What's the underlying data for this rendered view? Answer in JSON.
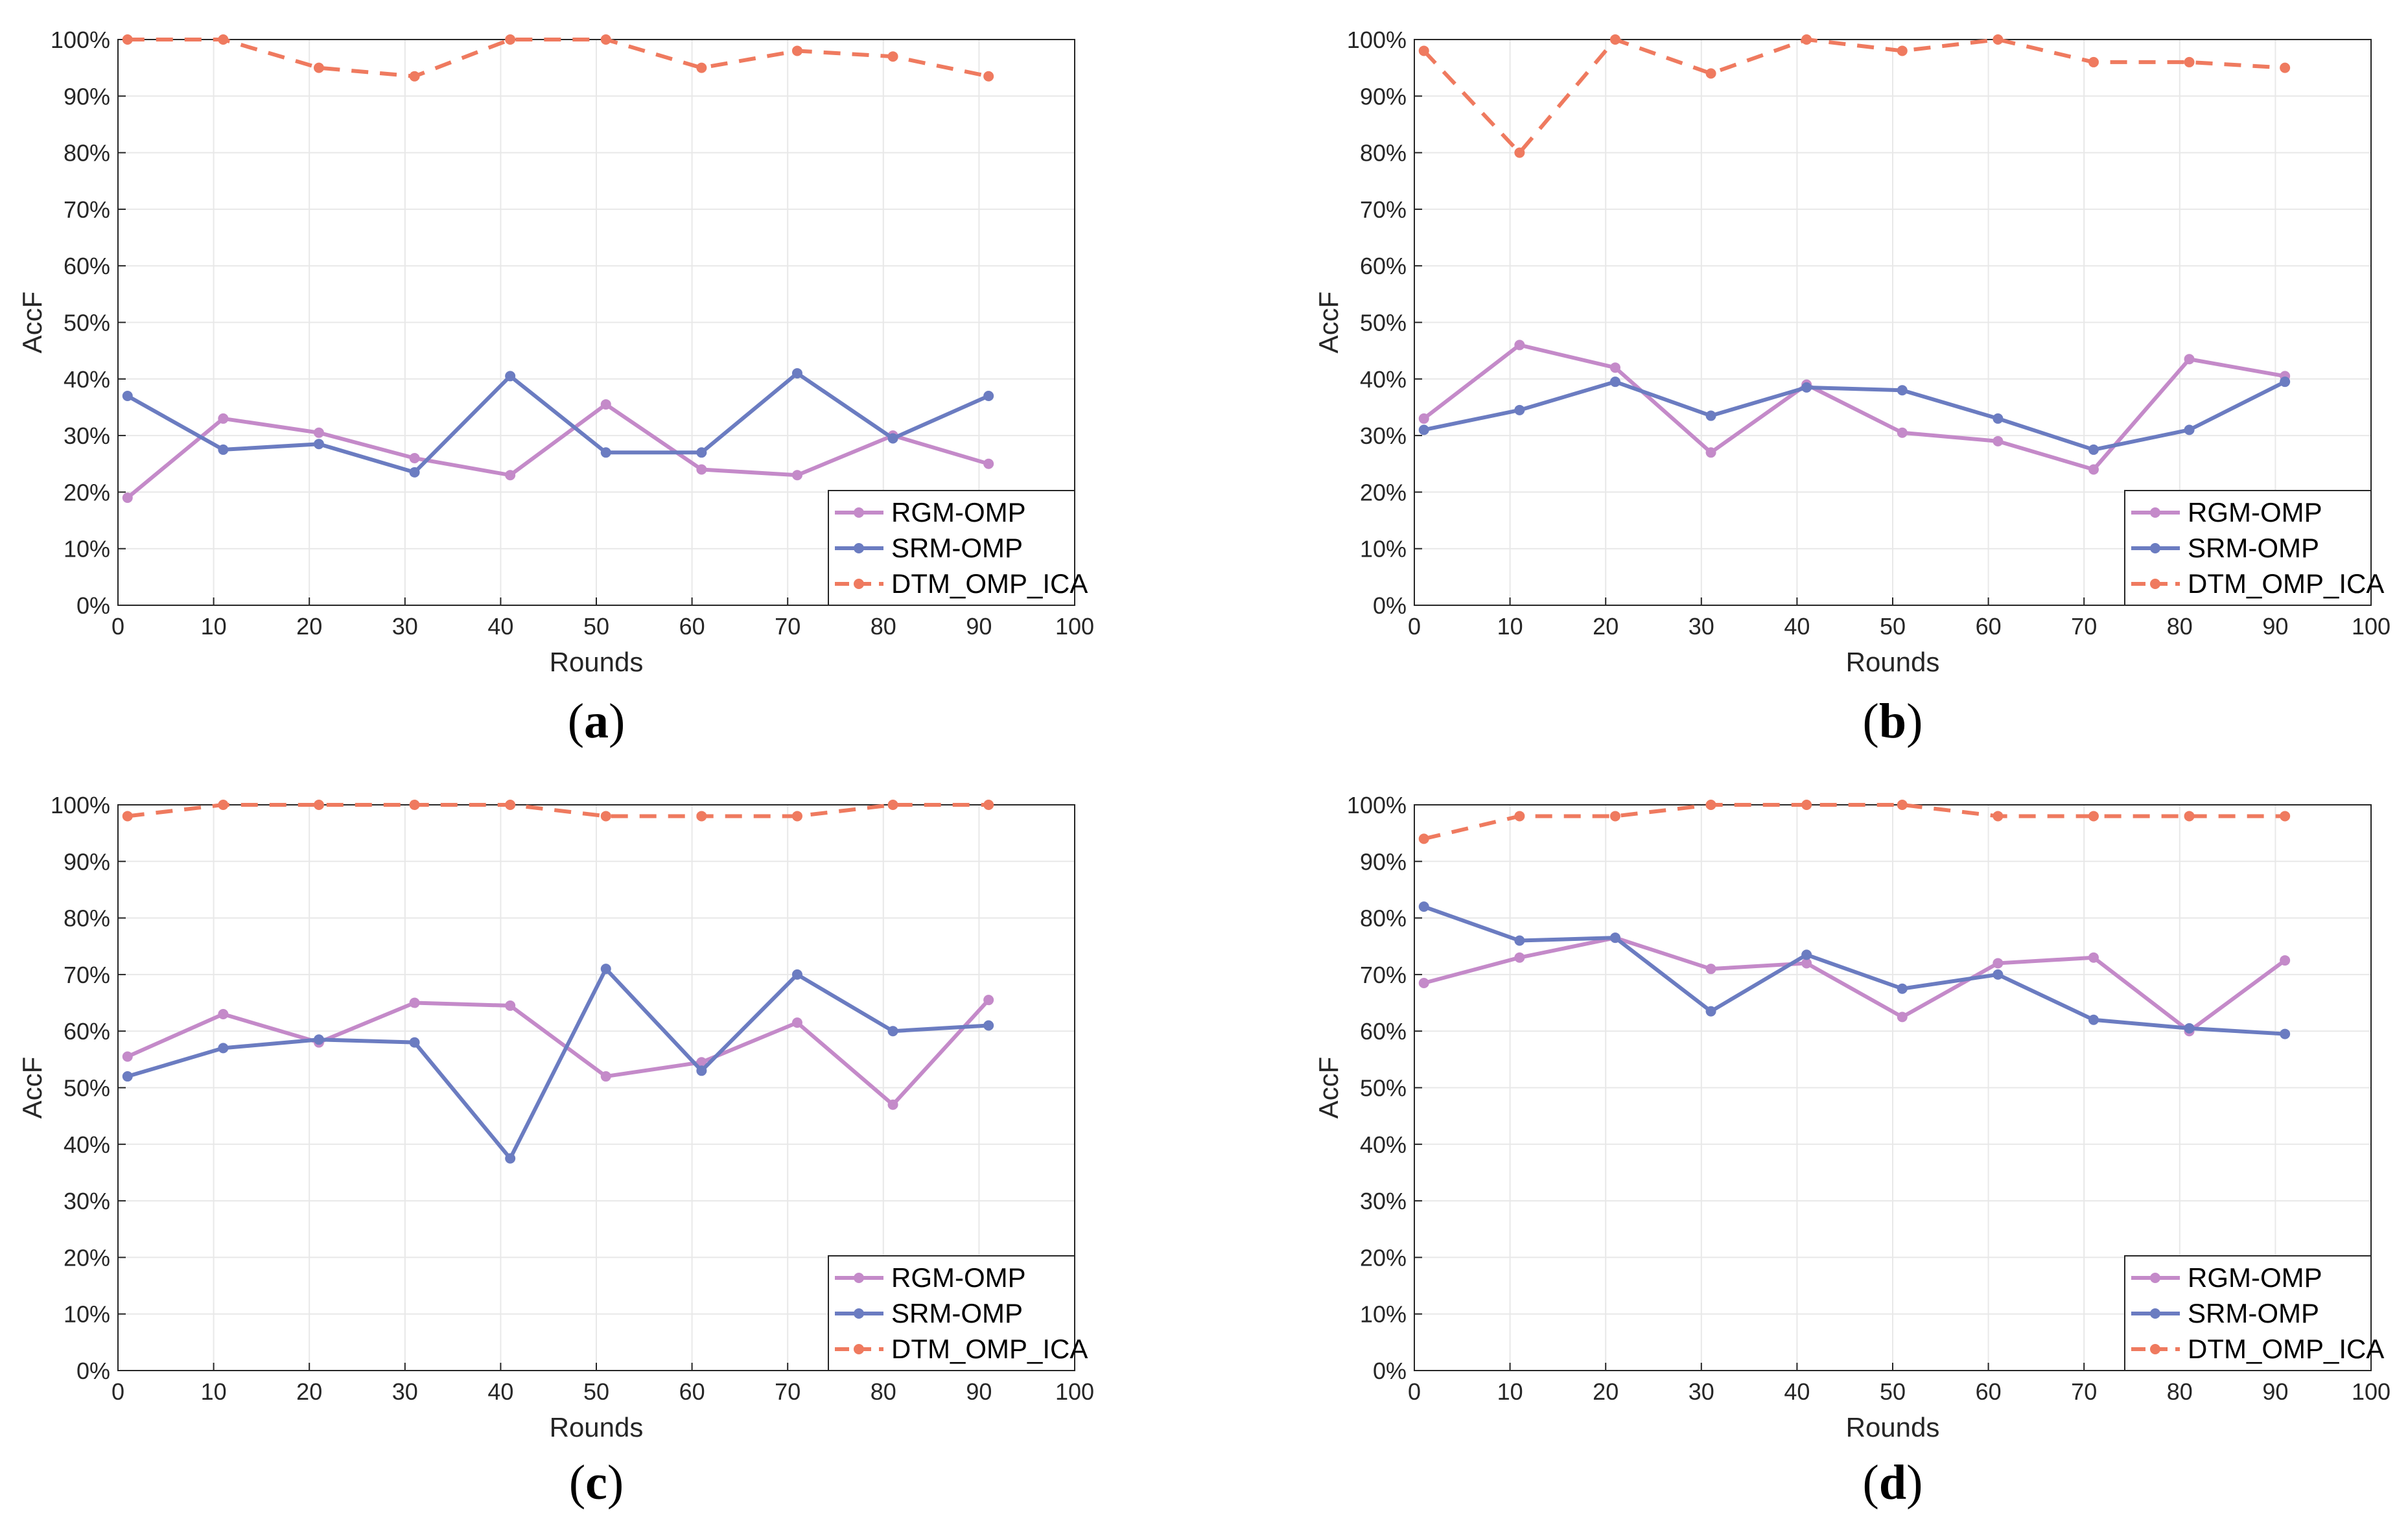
{
  "colors": {
    "RGM-OMP": "#c48ac9",
    "SRM-OMP": "#6b7cc1",
    "DTM_OMP_ICA": "#ef7a5f"
  },
  "chart_data": [
    {
      "type": "line",
      "caption_letter": "a",
      "xlabel": "Rounds",
      "ylabel": "AccF",
      "xlim": [
        0,
        100
      ],
      "ylim": [
        0,
        100
      ],
      "xticks": [
        "0",
        "10",
        "20",
        "30",
        "40",
        "50",
        "60",
        "70",
        "80",
        "90",
        "100"
      ],
      "yticks": [
        "0%",
        "10%",
        "20%",
        "30%",
        "40%",
        "50%",
        "60%",
        "70%",
        "80%",
        "90%",
        "100%"
      ],
      "grid": true,
      "legend": "bottom-right",
      "x": [
        1,
        11,
        21,
        31,
        41,
        51,
        61,
        71,
        81,
        91
      ],
      "series": [
        {
          "name": "RGM-OMP",
          "values": [
            19,
            33,
            30.5,
            26,
            23,
            35.5,
            24,
            23,
            30,
            25
          ]
        },
        {
          "name": "SRM-OMP",
          "values": [
            37,
            27.5,
            28.5,
            23.5,
            40.5,
            27,
            27,
            41,
            29.5,
            37
          ]
        },
        {
          "name": "DTM_OMP_ICA",
          "values": [
            100,
            100,
            95,
            93.5,
            100,
            100,
            95,
            98,
            97,
            93.5
          ]
        }
      ]
    },
    {
      "type": "line",
      "caption_letter": "b",
      "xlabel": "Rounds",
      "ylabel": "AccF",
      "xlim": [
        0,
        100
      ],
      "ylim": [
        0,
        100
      ],
      "xticks": [
        "0",
        "10",
        "20",
        "30",
        "40",
        "50",
        "60",
        "70",
        "80",
        "90",
        "100"
      ],
      "yticks": [
        "0%",
        "10%",
        "20%",
        "30%",
        "40%",
        "50%",
        "60%",
        "70%",
        "80%",
        "90%",
        "100%"
      ],
      "grid": true,
      "legend": "bottom-right",
      "x": [
        1,
        11,
        21,
        31,
        41,
        51,
        61,
        71,
        81,
        91
      ],
      "series": [
        {
          "name": "RGM-OMP",
          "values": [
            33,
            46,
            42,
            27,
            39,
            30.5,
            29,
            24,
            43.5,
            40.5
          ]
        },
        {
          "name": "SRM-OMP",
          "values": [
            31,
            34.5,
            39.5,
            33.5,
            38.5,
            38,
            33,
            27.5,
            31,
            39.5
          ]
        },
        {
          "name": "DTM_OMP_ICA",
          "values": [
            98,
            80,
            100,
            94,
            100,
            98,
            100,
            96,
            96,
            95
          ]
        }
      ]
    },
    {
      "type": "line",
      "caption_letter": "c",
      "xlabel": "Rounds",
      "ylabel": "AccF",
      "xlim": [
        0,
        100
      ],
      "ylim": [
        0,
        100
      ],
      "xticks": [
        "0",
        "10",
        "20",
        "30",
        "40",
        "50",
        "60",
        "70",
        "80",
        "90",
        "100"
      ],
      "yticks": [
        "0%",
        "10%",
        "20%",
        "30%",
        "40%",
        "50%",
        "60%",
        "70%",
        "80%",
        "90%",
        "100%"
      ],
      "grid": true,
      "legend": "bottom-right",
      "x": [
        1,
        11,
        21,
        31,
        41,
        51,
        61,
        71,
        81,
        91
      ],
      "series": [
        {
          "name": "RGM-OMP",
          "values": [
            55.5,
            63,
            58,
            65,
            64.5,
            52,
            54.5,
            61.5,
            47,
            65.5
          ]
        },
        {
          "name": "SRM-OMP",
          "values": [
            52,
            57,
            58.5,
            58,
            37.5,
            71,
            53,
            70,
            60,
            61
          ]
        },
        {
          "name": "DTM_OMP_ICA",
          "values": [
            98,
            100,
            100,
            100,
            100,
            98,
            98,
            98,
            100,
            100
          ]
        }
      ]
    },
    {
      "type": "line",
      "caption_letter": "d",
      "xlabel": "Rounds",
      "ylabel": "AccF",
      "xlim": [
        0,
        100
      ],
      "ylim": [
        0,
        100
      ],
      "xticks": [
        "0",
        "10",
        "20",
        "30",
        "40",
        "50",
        "60",
        "70",
        "80",
        "90",
        "100"
      ],
      "yticks": [
        "0%",
        "10%",
        "20%",
        "30%",
        "40%",
        "50%",
        "60%",
        "70%",
        "80%",
        "90%",
        "100%"
      ],
      "grid": true,
      "legend": "bottom-right",
      "x": [
        1,
        11,
        21,
        31,
        41,
        51,
        61,
        71,
        81,
        91
      ],
      "series": [
        {
          "name": "RGM-OMP",
          "values": [
            68.5,
            73,
            76.5,
            71,
            72,
            62.5,
            72,
            73,
            60,
            72.5
          ]
        },
        {
          "name": "SRM-OMP",
          "values": [
            82,
            76,
            76.5,
            63.5,
            73.5,
            67.5,
            70,
            62,
            60.5,
            59.5
          ]
        },
        {
          "name": "DTM_OMP_ICA",
          "values": [
            94,
            98,
            98,
            100,
            100,
            100,
            98,
            98,
            98,
            98
          ]
        }
      ]
    }
  ]
}
